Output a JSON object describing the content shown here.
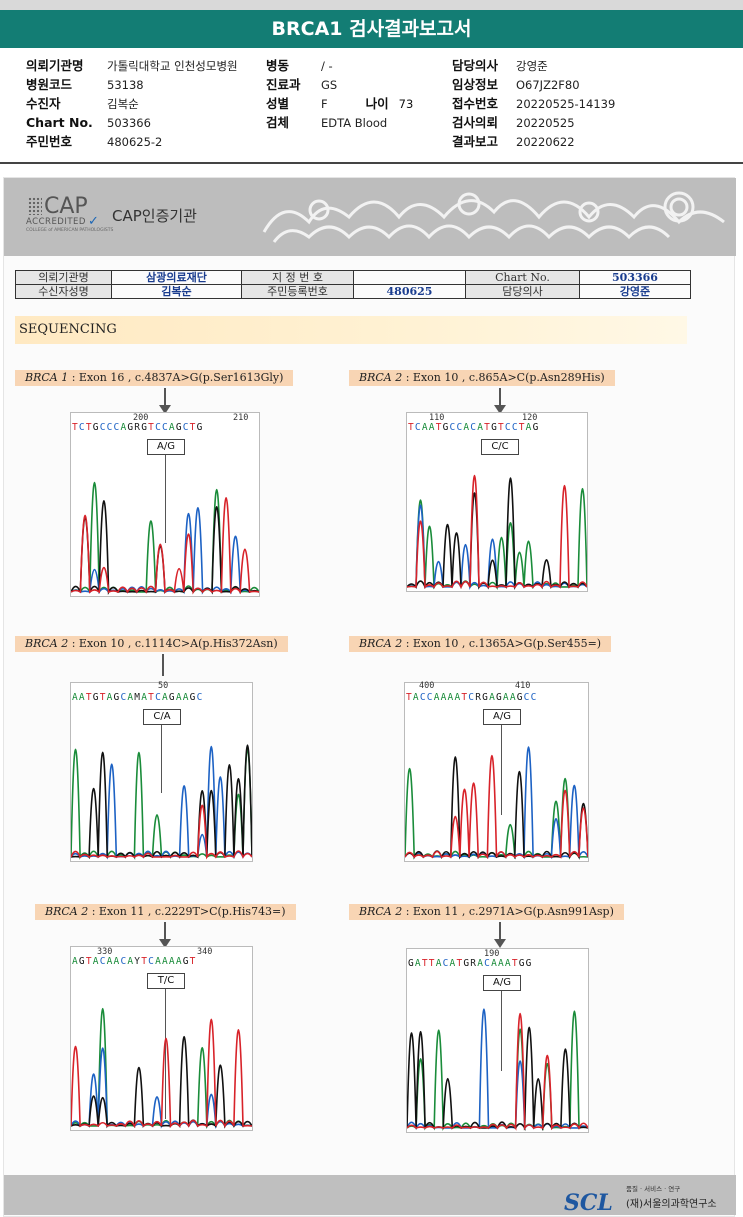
{
  "report_title": "BRCA1 검사결과보고서",
  "header": {
    "col1": [
      {
        "label": "의뢰기관명",
        "value": "가톨릭대학교 인천성모병원"
      },
      {
        "label": "병원코드",
        "value": "53138"
      },
      {
        "label": "수진자",
        "value": "김복순"
      },
      {
        "label": "Chart No.",
        "value": "503366"
      },
      {
        "label": "주민번호",
        "value": "480625-2"
      }
    ],
    "col2": [
      {
        "label": "병동",
        "value": "/ -"
      },
      {
        "label": "진료과",
        "value": "GS"
      },
      {
        "label": "성별",
        "value": "F"
      },
      {
        "label": "검체",
        "value": "EDTA Blood"
      }
    ],
    "age": {
      "label": "나이",
      "value": "73"
    },
    "col3": [
      {
        "label": "담당의사",
        "value": "강영준"
      },
      {
        "label": "임상정보",
        "value": "O67JZ2F80"
      },
      {
        "label": "접수번호",
        "value": "20220525-14139"
      },
      {
        "label": "검사의뢰",
        "value": "20220525"
      },
      {
        "label": "결과보고",
        "value": "20220622"
      }
    ]
  },
  "cap": {
    "logo_text": "CAP",
    "accredited": "ACCREDITED",
    "college": "COLLEGE of AMERICAN PATHOLOGISTS",
    "cert_label": "CAP인증기관"
  },
  "patient_table": {
    "r1": [
      "의뢰기관명",
      "삼광의료재단",
      "지 정 번 호",
      "",
      "Chart No.",
      "503366"
    ],
    "r2": [
      "수신자성명",
      "김복순",
      "주민등록번호",
      "480625",
      "담당의사",
      "강영준"
    ]
  },
  "section_title": "SEQUENCING",
  "variants": [
    {
      "gene": "BRCA 1",
      "desc": " : Exon 16 , c.4837A>G(p.Ser1613Gly)",
      "pos_left": "200",
      "pos_right": "210",
      "bases": "TCTGCCCAGRGTCCAGCTG",
      "genotype": "A/G"
    },
    {
      "gene": "BRCA 2",
      "desc": " : Exon 10 , c.865A>C(p.Asn289His)",
      "pos_left": "110",
      "pos_right": "120",
      "bases": "TCAATGCCACATGTCCTAG",
      "genotype": "C/C"
    },
    {
      "gene": "BRCA 2",
      "desc": " : Exon 10 , c.1114C>A(p.His372Asn)",
      "pos_left": "50",
      "pos_right": "",
      "bases": "AATGTAGCAMATCAGAAGC",
      "genotype": "C/A"
    },
    {
      "gene": "BRCA 2",
      "desc": " : Exon 10 , c.1365A>G(p.Ser455=)",
      "pos_left": "400",
      "pos_right": "410",
      "bases": "TACCAAAATCRGAGAAGCC",
      "genotype": "A/G"
    },
    {
      "gene": "BRCA 2",
      "desc": " : Exon 11 , c.2229T>C(p.His743=)",
      "pos_left": "330",
      "pos_right": "340",
      "bases": "AGTACAACAYTCAAAAGT",
      "genotype": "T/C"
    },
    {
      "gene": "BRCA 2",
      "desc": " : Exon 11 , c.2971A>G(p.Asn991Asp)",
      "pos_left": "190",
      "pos_right": "",
      "bases": "GATTACATGRACAAATGG",
      "genotype": "A/G"
    }
  ],
  "footer": {
    "logo": "SCL",
    "tagline": "품질 · 서비스 · 연구",
    "org": "(재)서울의과학연구소"
  },
  "colors": {
    "title_bar": "#137d74",
    "trace_a": "#1a8c3a",
    "trace_c": "#1d62c4",
    "trace_g": "#111111",
    "trace_t": "#d8232a"
  }
}
